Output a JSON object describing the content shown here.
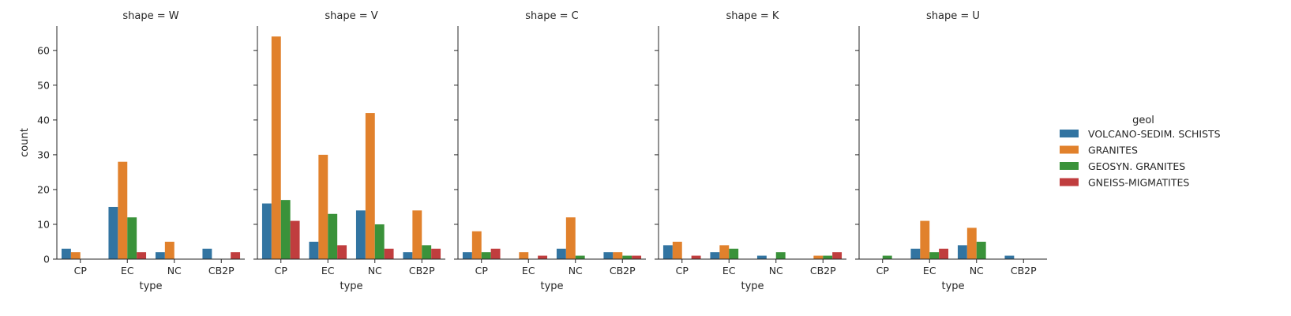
{
  "chart_data": {
    "type": "bar",
    "ylabel": "count",
    "xlabel": "type",
    "ylim": [
      0,
      67
    ],
    "y_ticks": [
      "0",
      "10",
      "20",
      "30",
      "40",
      "50",
      "60"
    ],
    "categories": [
      "CP",
      "EC",
      "NC",
      "CB2P"
    ],
    "legend": {
      "title": "geol",
      "placement": "right",
      "entries": [
        {
          "name": "VOLCANO-SEDIM. SCHISTS",
          "color": "#3274a1"
        },
        {
          "name": "GRANITES",
          "color": "#e1812c"
        },
        {
          "name": "GEOSYN. GRANITES",
          "color": "#3a923a"
        },
        {
          "name": "GNEISS-MIGMATITES",
          "color": "#c03d3e"
        }
      ]
    },
    "panels": [
      {
        "title": "shape = W",
        "series": [
          {
            "name": "VOLCANO-SEDIM. SCHISTS",
            "values": [
              3,
              15,
              2,
              3
            ]
          },
          {
            "name": "GRANITES",
            "values": [
              2,
              28,
              5,
              0
            ]
          },
          {
            "name": "GEOSYN. GRANITES",
            "values": [
              0,
              12,
              0,
              0
            ]
          },
          {
            "name": "GNEISS-MIGMATITES",
            "values": [
              0,
              2,
              0,
              2
            ]
          }
        ]
      },
      {
        "title": "shape = V",
        "series": [
          {
            "name": "VOLCANO-SEDIM. SCHISTS",
            "values": [
              16,
              5,
              14,
              2
            ]
          },
          {
            "name": "GRANITES",
            "values": [
              64,
              30,
              42,
              14
            ]
          },
          {
            "name": "GEOSYN. GRANITES",
            "values": [
              17,
              13,
              10,
              4
            ]
          },
          {
            "name": "GNEISS-MIGMATITES",
            "values": [
              11,
              4,
              3,
              3
            ]
          }
        ]
      },
      {
        "title": "shape = C",
        "series": [
          {
            "name": "VOLCANO-SEDIM. SCHISTS",
            "values": [
              2,
              0,
              3,
              2
            ]
          },
          {
            "name": "GRANITES",
            "values": [
              8,
              2,
              12,
              2
            ]
          },
          {
            "name": "GEOSYN. GRANITES",
            "values": [
              2,
              0,
              1,
              1
            ]
          },
          {
            "name": "GNEISS-MIGMATITES",
            "values": [
              3,
              1,
              0,
              1
            ]
          }
        ]
      },
      {
        "title": "shape = K",
        "series": [
          {
            "name": "VOLCANO-SEDIM. SCHISTS",
            "values": [
              4,
              2,
              1,
              0
            ]
          },
          {
            "name": "GRANITES",
            "values": [
              5,
              4,
              0,
              1
            ]
          },
          {
            "name": "GEOSYN. GRANITES",
            "values": [
              0,
              3,
              2,
              1
            ]
          },
          {
            "name": "GNEISS-MIGMATITES",
            "values": [
              1,
              0,
              0,
              2
            ]
          }
        ]
      },
      {
        "title": "shape = U",
        "series": [
          {
            "name": "VOLCANO-SEDIM. SCHISTS",
            "values": [
              0,
              3,
              4,
              1
            ]
          },
          {
            "name": "GRANITES",
            "values": [
              0,
              11,
              9,
              0
            ]
          },
          {
            "name": "GEOSYN. GRANITES",
            "values": [
              1,
              2,
              5,
              0
            ]
          },
          {
            "name": "GNEISS-MIGMATITES",
            "values": [
              0,
              3,
              0,
              0
            ]
          }
        ]
      }
    ]
  }
}
